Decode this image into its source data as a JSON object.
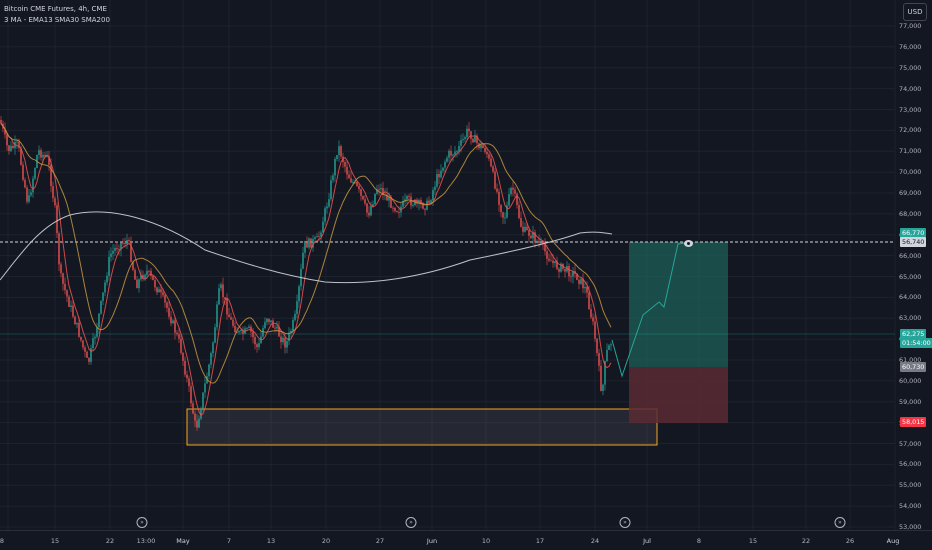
{
  "legend": {
    "symbol_line": "Bitcoin CME Futures, 4h, CME",
    "indicators_line": "3 MA - EMA13 SMA30 SMA200"
  },
  "currency_button": "USD",
  "price_axis": [
    "77,000",
    "76,000",
    "75,000",
    "74,000",
    "73,000",
    "72,000",
    "71,000",
    "70,000",
    "69,000",
    "68,000",
    "67,000",
    "66,000",
    "65,000",
    "64,000",
    "63,000",
    "62,000",
    "61,000",
    "60,000",
    "59,000",
    "58,000",
    "57,000",
    "56,000",
    "55,000",
    "54,000",
    "53,000"
  ],
  "price_tags": {
    "target": "66,770",
    "dashed_level": "56,740",
    "current_price": "62,275",
    "countdown": "01:54:00",
    "entry": "60,730",
    "stop": "58,015"
  },
  "time_axis": [
    "8",
    "15",
    "22",
    "13:00",
    "May",
    "7",
    "13",
    "20",
    "27",
    "Jun",
    "10",
    "17",
    "24",
    "Jul",
    "8",
    "15",
    "22",
    "26",
    "Aug"
  ],
  "colors": {
    "background": "#131722",
    "bull": "#26a69a",
    "bear": "#ef5350",
    "ema13": "#ef5350",
    "sma30": "#c8963e",
    "sma200": "#d1d4dc",
    "zone_border": "#f7a51c",
    "profit_fill": "#1d5f57",
    "loss_fill": "#5b2a32"
  },
  "chart_data": {
    "type": "candlestick",
    "series": [
      {
        "name": "EMA13"
      },
      {
        "name": "SMA30"
      },
      {
        "name": "SMA200"
      }
    ],
    "ylim": [
      53000,
      77500
    ]
  }
}
